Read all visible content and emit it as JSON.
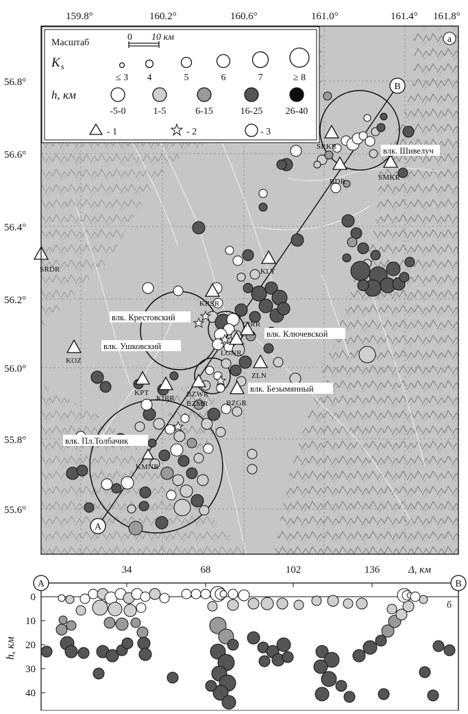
{
  "map": {
    "panel_letter": "а",
    "lon_ticks": [
      "159.8°",
      "160.2°",
      "160.6°",
      "161.0°",
      "161.4°",
      "161.8°"
    ],
    "lat_ticks": [
      "56.8°",
      "56.6°",
      "56.4°",
      "56.2°",
      "56.0°",
      "55.8°",
      "55.6°"
    ],
    "profile_ends": {
      "start": "A",
      "end": "B"
    }
  },
  "legend": {
    "scale_label": "Масштаб",
    "scale_zero": "0",
    "scale_ten": "10 км",
    "ks_label": "K",
    "ks_sub": "s",
    "ks_values": [
      "≤ 3",
      "4",
      "5",
      "6",
      "7",
      "≥ 8"
    ],
    "depth_label": "h, км",
    "depth_classes": [
      {
        "label": "-5-0",
        "color": "#ffffff"
      },
      {
        "label": "1-5",
        "color": "#cfcfcf"
      },
      {
        "label": "6-15",
        "color": "#9a9a9a"
      },
      {
        "label": "16-25",
        "color": "#555555"
      },
      {
        "label": "26-40",
        "color": "#0d0d0d"
      }
    ],
    "symbols": [
      {
        "label": "- 1",
        "icon": "triangle-icon"
      },
      {
        "label": "- 2",
        "icon": "star-icon"
      },
      {
        "label": "- 3",
        "icon": "circle-icon"
      }
    ]
  },
  "stations": [
    "SRKR",
    "BDR",
    "SMKR",
    "SRDR",
    "KLY",
    "KRSR",
    "CIRR",
    "LGNR",
    "ZLN",
    "KOZ",
    "KPT",
    "KIRR",
    "BZWR",
    "BZMR",
    "BZGR",
    "KMNR"
  ],
  "volcanoes": [
    "влк. Шивелуч",
    "влк. Крестовский",
    "влк. Ушковский",
    "влк. Ключевской",
    "влк. Безымянный",
    "влк. Пл.Толбачик"
  ],
  "section": {
    "panel_letter": "б",
    "x_ticks": [
      "34",
      "68",
      "102",
      "136"
    ],
    "x_label": "Δ, км",
    "y_ticks": [
      "0",
      "10",
      "20",
      "30",
      "40"
    ],
    "y_label": "h, км",
    "end_left": "A",
    "end_right": "B"
  }
}
